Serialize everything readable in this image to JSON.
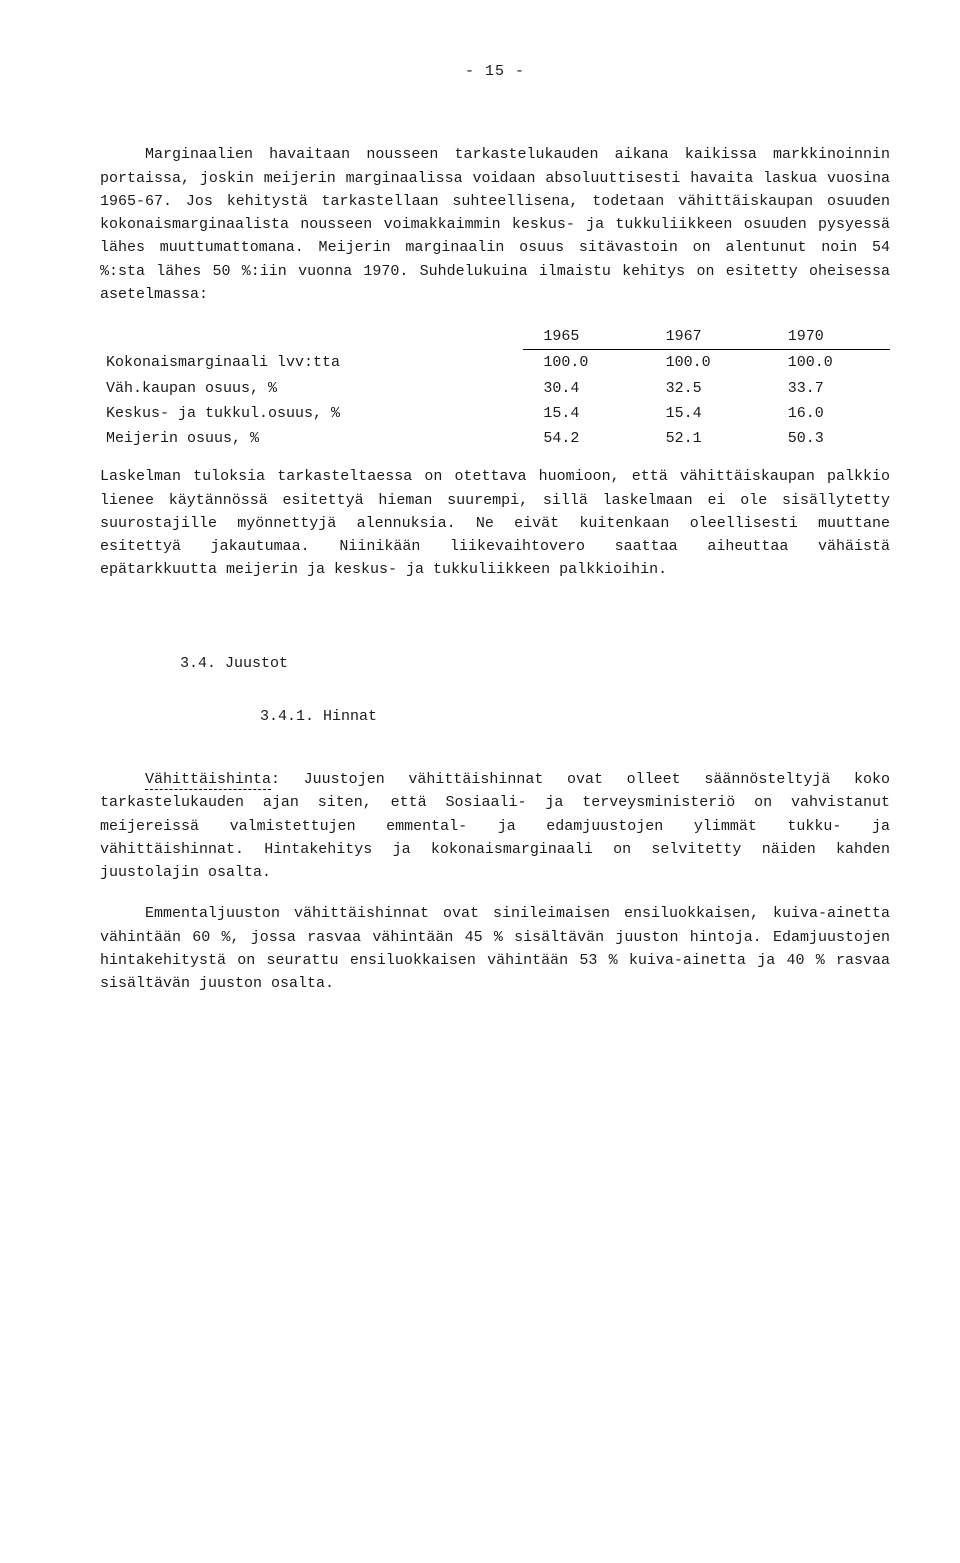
{
  "page_number": "- 15 -",
  "paragraphs": {
    "p1": "Marginaalien havaitaan nousseen tarkastelukauden aikana kaikissa markkinoinnin portaissa, joskin meijerin marginaalissa voidaan absoluuttisesti havaita laskua vuosina 1965-67. Jos kehitystä tarkastellaan suhteellisena, todetaan vähittäiskaupan osuuden kokonaismarginaalista nousseen voimakkaimmin keskus- ja tukkuliikkeen osuuden pysyessä lähes muuttumattomana. Meijerin marginaalin osuus sitävastoin on alentunut noin 54 %:sta lähes 50 %:iin vuonna 1970. Suhdelukuina ilmaistu kehitys on esitetty oheisessa asetelmassa:",
    "p2": "Laskelman tuloksia tarkasteltaessa on otettava huomioon, että vähittäiskaupan palkkio lienee käytännössä esitettyä hieman suurempi, sillä laskelmaan ei ole sisällytetty suurostajille myönnettyjä alennuksia. Ne eivät kuitenkaan oleellisesti muuttane esitettyä jakautumaa. Niinikään liikevaihtovero saattaa aiheuttaa vähäistä epätarkkuutta meijerin ja keskus- ja tukkuliikkeen palkkioihin.",
    "p3_label": "Vähittäishinta",
    "p3_rest": ": Juustojen vähittäishinnat ovat olleet säännösteltyjä koko tarkastelukauden ajan siten, että Sosiaali- ja terveysministeriö on vahvistanut meijereissä valmistettujen emmental- ja edamjuustojen ylimmät tukku- ja vähittäishinnat. Hintakehitys ja kokonaismarginaali on selvitetty näiden kahden juustolajin osalta.",
    "p4": "Emmentaljuuston vähittäishinnat ovat sinileimaisen ensiluokkaisen, kuiva-ainetta vähintään 60 %, jossa rasvaa vähintään 45 % sisältävän juuston hintoja. Edamjuustojen hintakehitystä on seurattu ensiluokkaisen vähintään 53 % kuiva-ainetta ja 40 % rasvaa sisältävän juuston osalta."
  },
  "headings": {
    "section": "3.4. Juustot",
    "subsection": "3.4.1. Hinnat"
  },
  "table": {
    "years": [
      "1965",
      "1967",
      "1970"
    ],
    "rows": [
      {
        "label": "Kokonaismarginaali lvv:tta",
        "vals": [
          "100.0",
          "100.0",
          "100.0"
        ]
      },
      {
        "label": "Väh.kaupan osuus, %",
        "vals": [
          "30.4",
          "32.5",
          "33.7"
        ]
      },
      {
        "label": "Keskus- ja tukkul.osuus, %",
        "vals": [
          "15.4",
          "15.4",
          "16.0"
        ]
      },
      {
        "label": "Meijerin osuus, %",
        "vals": [
          "54.2",
          "52.1",
          "50.3"
        ]
      }
    ]
  }
}
